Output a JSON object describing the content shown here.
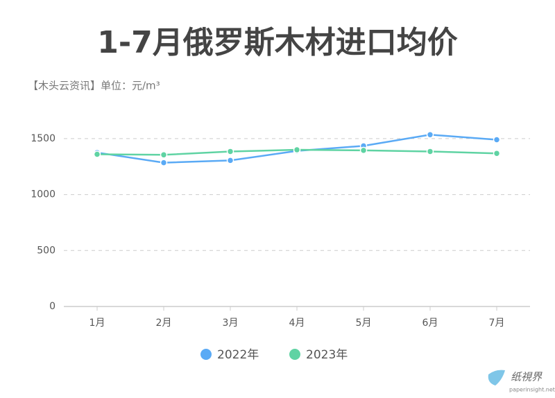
{
  "chart_data": {
    "type": "line",
    "title": "1-7月俄罗斯木材进口均价",
    "subtitle": "【木头云资讯】单位：元/m³",
    "categories": [
      "1月",
      "2月",
      "3月",
      "4月",
      "5月",
      "6月",
      "7月"
    ],
    "series": [
      {
        "name": "2022年",
        "color": "#5aaaf5",
        "values": [
          1375,
          1285,
          1305,
          1390,
          1435,
          1535,
          1490
        ]
      },
      {
        "name": "2023年",
        "color": "#5fd3a3",
        "values": [
          1360,
          1355,
          1385,
          1400,
          1395,
          1385,
          1368
        ]
      }
    ],
    "ylim": [
      0,
      1600
    ],
    "yticks": [
      0,
      500,
      1000,
      1500
    ],
    "grid": true,
    "watermark": {
      "name": "纸視界",
      "site": "paperinsight.net"
    }
  }
}
